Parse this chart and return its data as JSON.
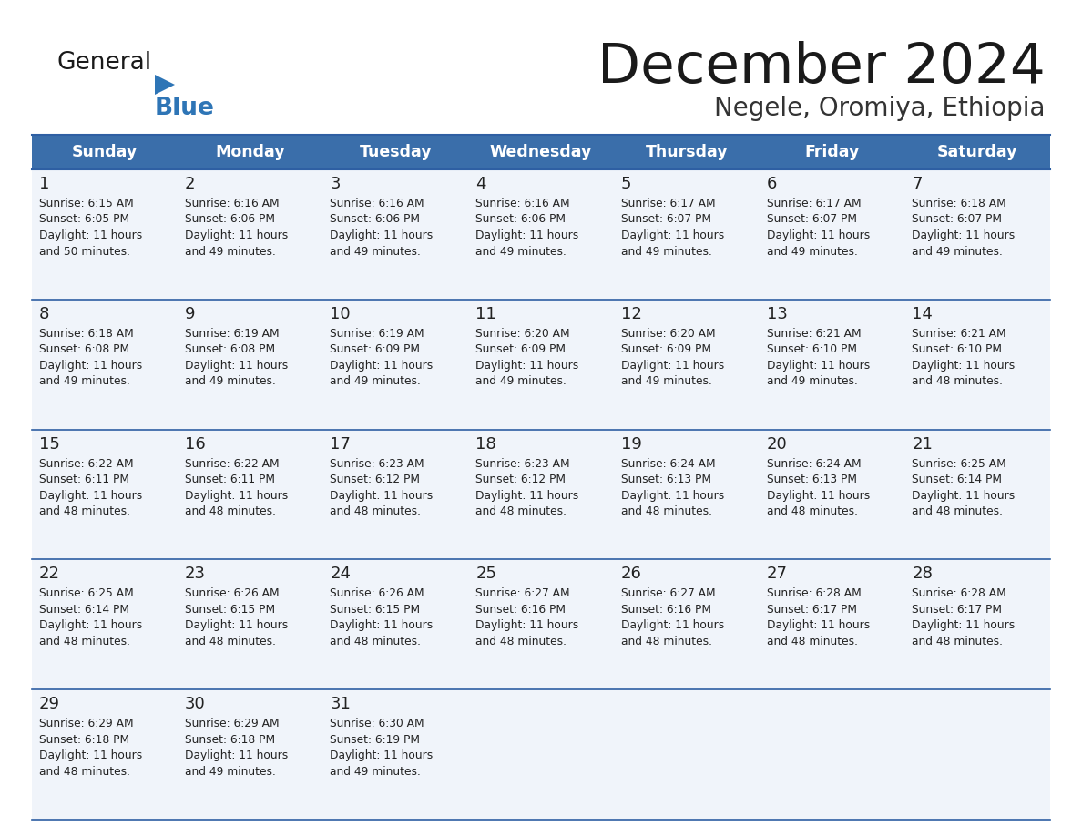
{
  "title": "December 2024",
  "subtitle": "Negele, Oromiya, Ethiopia",
  "header_bg_color": "#3A6EAA",
  "header_text_color": "#FFFFFF",
  "cell_bg_color": "#F0F4FA",
  "separator_color": "#2E5FA3",
  "title_color": "#1a1a1a",
  "subtitle_color": "#333333",
  "text_color": "#222222",
  "day_names": [
    "Sunday",
    "Monday",
    "Tuesday",
    "Wednesday",
    "Thursday",
    "Friday",
    "Saturday"
  ],
  "days": [
    {
      "day": 1,
      "col": 0,
      "row": 0,
      "sunrise": "6:15 AM",
      "sunset": "6:05 PM",
      "daylight": "11 hours and 50 minutes."
    },
    {
      "day": 2,
      "col": 1,
      "row": 0,
      "sunrise": "6:16 AM",
      "sunset": "6:06 PM",
      "daylight": "11 hours and 49 minutes."
    },
    {
      "day": 3,
      "col": 2,
      "row": 0,
      "sunrise": "6:16 AM",
      "sunset": "6:06 PM",
      "daylight": "11 hours and 49 minutes."
    },
    {
      "day": 4,
      "col": 3,
      "row": 0,
      "sunrise": "6:16 AM",
      "sunset": "6:06 PM",
      "daylight": "11 hours and 49 minutes."
    },
    {
      "day": 5,
      "col": 4,
      "row": 0,
      "sunrise": "6:17 AM",
      "sunset": "6:07 PM",
      "daylight": "11 hours and 49 minutes."
    },
    {
      "day": 6,
      "col": 5,
      "row": 0,
      "sunrise": "6:17 AM",
      "sunset": "6:07 PM",
      "daylight": "11 hours and 49 minutes."
    },
    {
      "day": 7,
      "col": 6,
      "row": 0,
      "sunrise": "6:18 AM",
      "sunset": "6:07 PM",
      "daylight": "11 hours and 49 minutes."
    },
    {
      "day": 8,
      "col": 0,
      "row": 1,
      "sunrise": "6:18 AM",
      "sunset": "6:08 PM",
      "daylight": "11 hours and 49 minutes."
    },
    {
      "day": 9,
      "col": 1,
      "row": 1,
      "sunrise": "6:19 AM",
      "sunset": "6:08 PM",
      "daylight": "11 hours and 49 minutes."
    },
    {
      "day": 10,
      "col": 2,
      "row": 1,
      "sunrise": "6:19 AM",
      "sunset": "6:09 PM",
      "daylight": "11 hours and 49 minutes."
    },
    {
      "day": 11,
      "col": 3,
      "row": 1,
      "sunrise": "6:20 AM",
      "sunset": "6:09 PM",
      "daylight": "11 hours and 49 minutes."
    },
    {
      "day": 12,
      "col": 4,
      "row": 1,
      "sunrise": "6:20 AM",
      "sunset": "6:09 PM",
      "daylight": "11 hours and 49 minutes."
    },
    {
      "day": 13,
      "col": 5,
      "row": 1,
      "sunrise": "6:21 AM",
      "sunset": "6:10 PM",
      "daylight": "11 hours and 49 minutes."
    },
    {
      "day": 14,
      "col": 6,
      "row": 1,
      "sunrise": "6:21 AM",
      "sunset": "6:10 PM",
      "daylight": "11 hours and 48 minutes."
    },
    {
      "day": 15,
      "col": 0,
      "row": 2,
      "sunrise": "6:22 AM",
      "sunset": "6:11 PM",
      "daylight": "11 hours and 48 minutes."
    },
    {
      "day": 16,
      "col": 1,
      "row": 2,
      "sunrise": "6:22 AM",
      "sunset": "6:11 PM",
      "daylight": "11 hours and 48 minutes."
    },
    {
      "day": 17,
      "col": 2,
      "row": 2,
      "sunrise": "6:23 AM",
      "sunset": "6:12 PM",
      "daylight": "11 hours and 48 minutes."
    },
    {
      "day": 18,
      "col": 3,
      "row": 2,
      "sunrise": "6:23 AM",
      "sunset": "6:12 PM",
      "daylight": "11 hours and 48 minutes."
    },
    {
      "day": 19,
      "col": 4,
      "row": 2,
      "sunrise": "6:24 AM",
      "sunset": "6:13 PM",
      "daylight": "11 hours and 48 minutes."
    },
    {
      "day": 20,
      "col": 5,
      "row": 2,
      "sunrise": "6:24 AM",
      "sunset": "6:13 PM",
      "daylight": "11 hours and 48 minutes."
    },
    {
      "day": 21,
      "col": 6,
      "row": 2,
      "sunrise": "6:25 AM",
      "sunset": "6:14 PM",
      "daylight": "11 hours and 48 minutes."
    },
    {
      "day": 22,
      "col": 0,
      "row": 3,
      "sunrise": "6:25 AM",
      "sunset": "6:14 PM",
      "daylight": "11 hours and 48 minutes."
    },
    {
      "day": 23,
      "col": 1,
      "row": 3,
      "sunrise": "6:26 AM",
      "sunset": "6:15 PM",
      "daylight": "11 hours and 48 minutes."
    },
    {
      "day": 24,
      "col": 2,
      "row": 3,
      "sunrise": "6:26 AM",
      "sunset": "6:15 PM",
      "daylight": "11 hours and 48 minutes."
    },
    {
      "day": 25,
      "col": 3,
      "row": 3,
      "sunrise": "6:27 AM",
      "sunset": "6:16 PM",
      "daylight": "11 hours and 48 minutes."
    },
    {
      "day": 26,
      "col": 4,
      "row": 3,
      "sunrise": "6:27 AM",
      "sunset": "6:16 PM",
      "daylight": "11 hours and 48 minutes."
    },
    {
      "day": 27,
      "col": 5,
      "row": 3,
      "sunrise": "6:28 AM",
      "sunset": "6:17 PM",
      "daylight": "11 hours and 48 minutes."
    },
    {
      "day": 28,
      "col": 6,
      "row": 3,
      "sunrise": "6:28 AM",
      "sunset": "6:17 PM",
      "daylight": "11 hours and 48 minutes."
    },
    {
      "day": 29,
      "col": 0,
      "row": 4,
      "sunrise": "6:29 AM",
      "sunset": "6:18 PM",
      "daylight": "11 hours and 48 minutes."
    },
    {
      "day": 30,
      "col": 1,
      "row": 4,
      "sunrise": "6:29 AM",
      "sunset": "6:18 PM",
      "daylight": "11 hours and 49 minutes."
    },
    {
      "day": 31,
      "col": 2,
      "row": 4,
      "sunrise": "6:30 AM",
      "sunset": "6:19 PM",
      "daylight": "11 hours and 49 minutes."
    }
  ]
}
